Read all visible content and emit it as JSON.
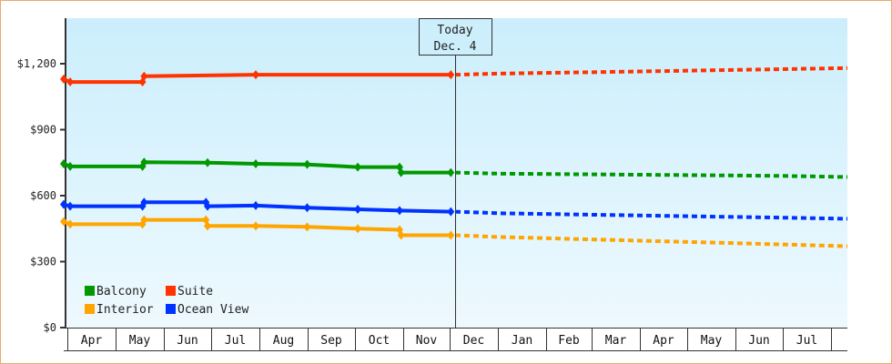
{
  "chart_data": {
    "type": "line",
    "title": "",
    "xlabel": "",
    "ylabel": "",
    "ylim": [
      0,
      1400
    ],
    "y_ticks": [
      {
        "value": 0,
        "label": "$0"
      },
      {
        "value": 300,
        "label": "$300"
      },
      {
        "value": 600,
        "label": "$600"
      },
      {
        "value": 900,
        "label": "$900"
      },
      {
        "value": 1200,
        "label": "$1,200"
      }
    ],
    "x_months": [
      "Apr",
      "May",
      "Jun",
      "Jul",
      "Aug",
      "Sep",
      "Oct",
      "Nov",
      "Dec",
      "Jan",
      "Feb",
      "Mar",
      "Apr",
      "May",
      "Jun",
      "Jul",
      ""
    ],
    "today_marker": {
      "line1": "Today",
      "line2": "Dec. 4"
    },
    "legend": [
      {
        "name": "Balcony",
        "color": "#009900"
      },
      {
        "name": "Suite",
        "color": "#ff3300"
      },
      {
        "name": "Interior",
        "color": "#ffa500"
      },
      {
        "name": "Ocean View",
        "color": "#0033ff"
      }
    ],
    "grid": false,
    "legend_position": "lower-left inside plot",
    "series": [
      {
        "name": "Suite",
        "color": "#ff3300",
        "historical": [
          {
            "x": "Apr 1",
            "y": 1130
          },
          {
            "x": "Apr 5",
            "y": 1117
          },
          {
            "x": "May 20",
            "y": 1117
          },
          {
            "x": "May 21",
            "y": 1143
          },
          {
            "x": "Aug 1",
            "y": 1150
          },
          {
            "x": "Dec 4",
            "y": 1150
          }
        ],
        "forecast": [
          {
            "x": "Dec 4",
            "y": 1150
          },
          {
            "x": "Jan",
            "y": 1155
          },
          {
            "x": "Apr",
            "y": 1165
          },
          {
            "x": "Jul",
            "y": 1175
          },
          {
            "x": "end",
            "y": 1180
          }
        ]
      },
      {
        "name": "Balcony",
        "color": "#009900",
        "historical": [
          {
            "x": "Apr 1",
            "y": 745
          },
          {
            "x": "Apr 5",
            "y": 733
          },
          {
            "x": "May 20",
            "y": 733
          },
          {
            "x": "May 21",
            "y": 752
          },
          {
            "x": "Jul 1",
            "y": 750
          },
          {
            "x": "Aug 1",
            "y": 745
          },
          {
            "x": "Sep 3",
            "y": 742
          },
          {
            "x": "Oct 5",
            "y": 730
          },
          {
            "x": "Nov 1",
            "y": 730
          },
          {
            "x": "Nov 2",
            "y": 705
          },
          {
            "x": "Dec 4",
            "y": 705
          }
        ],
        "forecast": [
          {
            "x": "Dec 4",
            "y": 705
          },
          {
            "x": "Jan",
            "y": 700
          },
          {
            "x": "Apr",
            "y": 695
          },
          {
            "x": "Jul",
            "y": 690
          },
          {
            "x": "end",
            "y": 685
          }
        ]
      },
      {
        "name": "Ocean View",
        "color": "#0033ff",
        "historical": [
          {
            "x": "Apr 1",
            "y": 560
          },
          {
            "x": "Apr 5",
            "y": 552
          },
          {
            "x": "May 20",
            "y": 552
          },
          {
            "x": "May 21",
            "y": 570
          },
          {
            "x": "Jun 30",
            "y": 570
          },
          {
            "x": "Jul 1",
            "y": 552
          },
          {
            "x": "Aug 1",
            "y": 555
          },
          {
            "x": "Sep 3",
            "y": 545
          },
          {
            "x": "Oct 5",
            "y": 538
          },
          {
            "x": "Nov 1",
            "y": 532
          },
          {
            "x": "Dec 4",
            "y": 527
          }
        ],
        "forecast": [
          {
            "x": "Dec 4",
            "y": 527
          },
          {
            "x": "Jan",
            "y": 520
          },
          {
            "x": "Apr",
            "y": 510
          },
          {
            "x": "Jul",
            "y": 500
          },
          {
            "x": "end",
            "y": 495
          }
        ]
      },
      {
        "name": "Interior",
        "color": "#ffa500",
        "historical": [
          {
            "x": "Apr 1",
            "y": 482
          },
          {
            "x": "Apr 5",
            "y": 470
          },
          {
            "x": "May 20",
            "y": 470
          },
          {
            "x": "May 21",
            "y": 490
          },
          {
            "x": "Jun 30",
            "y": 490
          },
          {
            "x": "Jul 1",
            "y": 462
          },
          {
            "x": "Aug 1",
            "y": 462
          },
          {
            "x": "Sep 3",
            "y": 458
          },
          {
            "x": "Oct 5",
            "y": 450
          },
          {
            "x": "Nov 1",
            "y": 445
          },
          {
            "x": "Nov 2",
            "y": 420
          },
          {
            "x": "Dec 4",
            "y": 420
          }
        ],
        "forecast": [
          {
            "x": "Dec 4",
            "y": 420
          },
          {
            "x": "Jan",
            "y": 412
          },
          {
            "x": "Apr",
            "y": 395
          },
          {
            "x": "Jul",
            "y": 378
          },
          {
            "x": "end",
            "y": 370
          }
        ]
      }
    ]
  }
}
